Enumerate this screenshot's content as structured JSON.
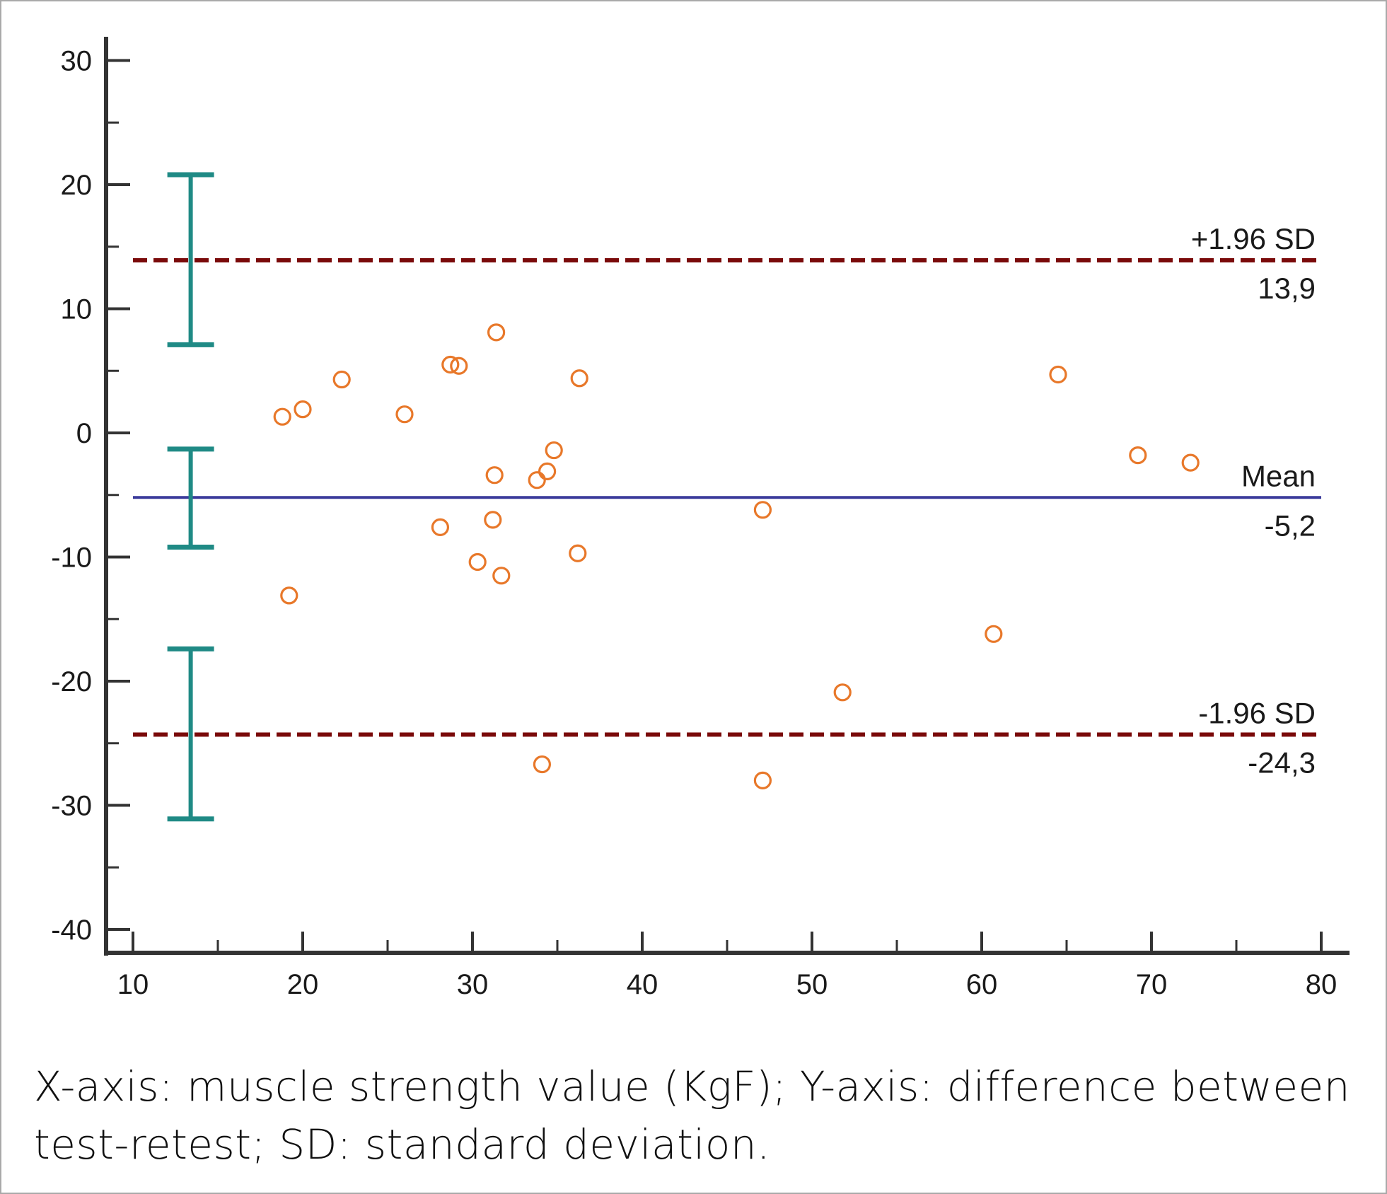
{
  "chart_data": {
    "type": "scatter",
    "subtype": "bland-altman",
    "title": "",
    "xlabel": "",
    "ylabel": "",
    "xlim": [
      10,
      80
    ],
    "ylim": [
      -40,
      30
    ],
    "x_ticks": [
      10,
      20,
      30,
      40,
      50,
      60,
      70,
      80
    ],
    "y_ticks": [
      30,
      20,
      10,
      0,
      -10,
      -20,
      -30,
      -40
    ],
    "x_tick_labels": [
      "10",
      "20",
      "30",
      "40",
      "50",
      "60",
      "70",
      "80"
    ],
    "y_tick_labels": [
      "30",
      "20",
      "10",
      "0",
      "-10",
      "-20",
      "-30",
      "-40"
    ],
    "grid": false,
    "points": {
      "name": "differences",
      "marker": "open-circle",
      "color": "#e8782a",
      "x": [
        18.8,
        20.0,
        22.3,
        26.0,
        28.7,
        29.2,
        31.4,
        36.3,
        34.8,
        31.3,
        34.4,
        33.8,
        28.1,
        31.2,
        30.3,
        31.7,
        36.2,
        19.2,
        34.1,
        47.1,
        47.1,
        51.8,
        60.7,
        64.5,
        69.2,
        72.3
      ],
      "y": [
        1.3,
        1.9,
        4.3,
        1.5,
        5.5,
        5.4,
        8.1,
        4.4,
        -1.4,
        -3.4,
        -3.1,
        -3.8,
        -7.6,
        -7.0,
        -10.4,
        -11.5,
        -9.7,
        -13.1,
        -26.7,
        -28.0,
        -6.2,
        -20.9,
        -16.2,
        4.7,
        -1.8,
        -2.4
      ]
    },
    "reference_lines": [
      {
        "name": "upper-loa",
        "label": "+1.96 SD",
        "value_label": "13,9",
        "value": 13.9,
        "style": "dashed",
        "color": "#7a0a0a"
      },
      {
        "name": "mean",
        "label": "Mean",
        "value_label": "-5,2",
        "value": -5.2,
        "style": "solid",
        "color": "#3a3a9a"
      },
      {
        "name": "lower-loa",
        "label": "-1.96 SD",
        "value_label": "-24,3",
        "value": -24.3,
        "style": "dashed",
        "color": "#7a0a0a"
      }
    ],
    "confidence_intervals": {
      "color": "#1f8a85",
      "x": 13.4,
      "intervals": [
        {
          "name": "upper-loa-ci",
          "low": 7.1,
          "high": 20.8
        },
        {
          "name": "mean-ci",
          "low": -9.2,
          "high": -1.3
        },
        {
          "name": "lower-loa-ci",
          "low": -31.1,
          "high": -17.4
        }
      ]
    }
  },
  "caption": {
    "line1": "X-axis: muscle strength value (KgF); Y-axis: difference between",
    "line2": "test-retest; SD: standard deviation."
  }
}
